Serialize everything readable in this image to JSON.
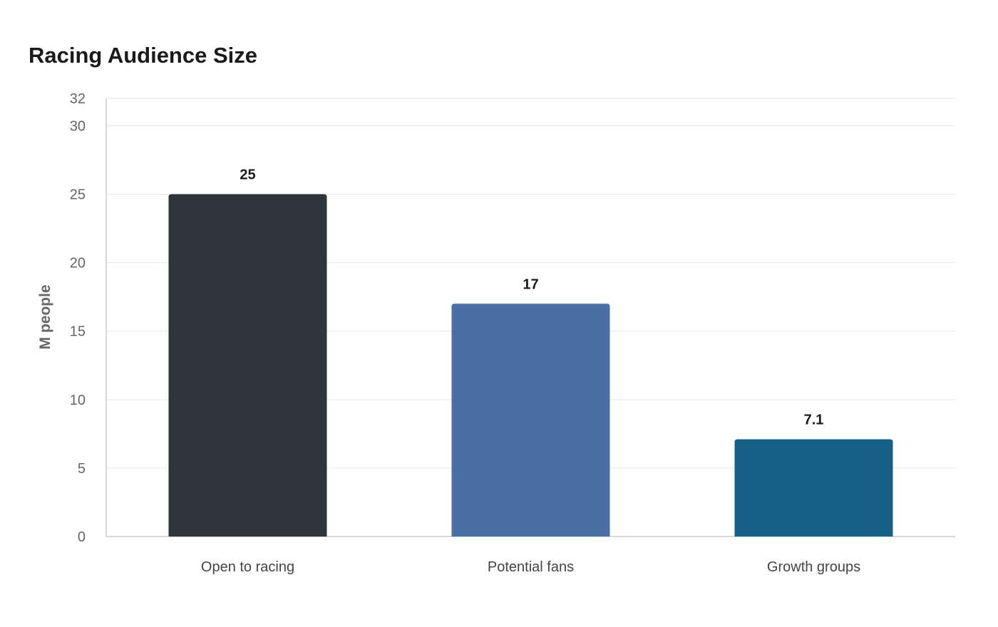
{
  "chart_data": {
    "type": "bar",
    "title": "Racing Audience Size",
    "xlabel": "",
    "ylabel": "M people",
    "categories": [
      "Open to racing",
      "Potential fans",
      "Growth groups"
    ],
    "values": [
      25,
      17,
      7.1
    ],
    "value_labels": [
      "25",
      "17",
      "7.1"
    ],
    "colors": [
      "#2e3538",
      "#4a6fa5",
      "#166088"
    ],
    "ylim": [
      0,
      32
    ],
    "yticks": [
      0,
      5,
      10,
      15,
      20,
      25,
      30,
      32
    ],
    "grid": true,
    "legend": "none"
  }
}
